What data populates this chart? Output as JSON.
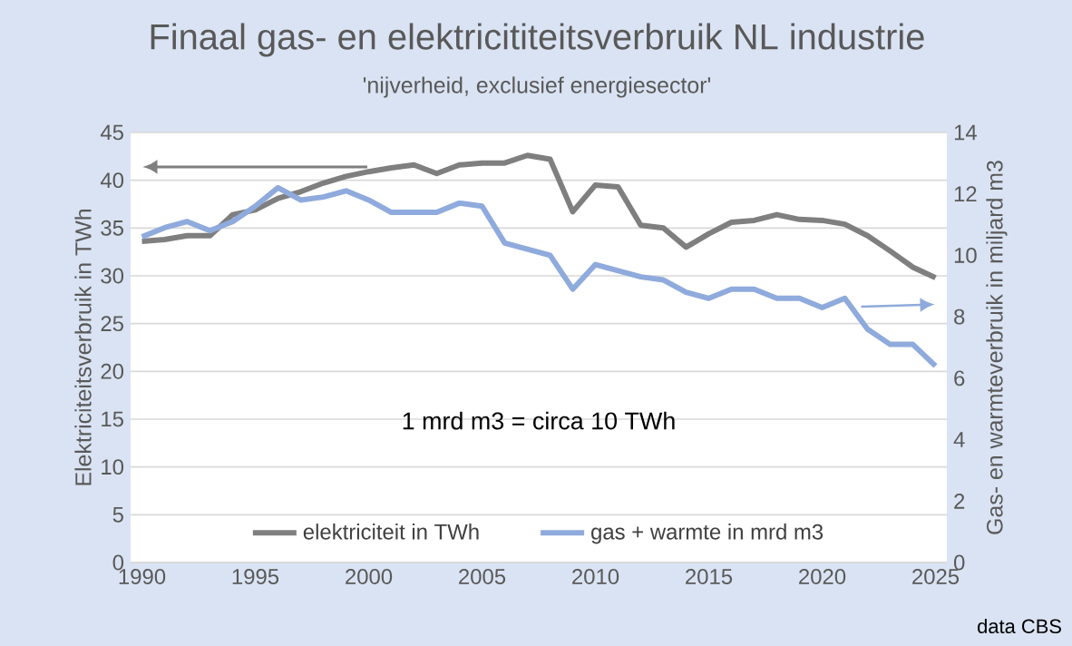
{
  "chart_data": {
    "type": "line",
    "title": "Finaal gas- en elektricititeitsverbruik NL industrie",
    "subtitle": "'nijverheid, exclusief energiesector'",
    "xlabel": null,
    "ylabel": "Elektriciteitsverbruik in TWh",
    "y2label": "Gas- en warmteverbruik in miljard m3",
    "x": [
      1990,
      1991,
      1992,
      1993,
      1994,
      1995,
      1996,
      1997,
      1998,
      1999,
      2000,
      2001,
      2002,
      2003,
      2004,
      2005,
      2006,
      2007,
      2008,
      2009,
      2010,
      2011,
      2012,
      2013,
      2014,
      2015,
      2016,
      2017,
      2018,
      2019,
      2020,
      2021,
      2022,
      2023,
      2024,
      2025
    ],
    "series": [
      {
        "name": "elektriciteit in TWh",
        "color": "#7f7f7f",
        "values": [
          33.6,
          33.8,
          34.2,
          34.2,
          36.4,
          36.9,
          38.1,
          38.8,
          39.7,
          40.4,
          40.9,
          41.3,
          41.6,
          40.7,
          41.6,
          41.8,
          41.8,
          42.6,
          42.2,
          36.7,
          39.5,
          39.3,
          35.3,
          35.0,
          33.0,
          34.4,
          35.6,
          35.8,
          36.4,
          35.9,
          35.8,
          35.4,
          34.2,
          32.6,
          30.9,
          29.8
        ]
      },
      {
        "name": "gas + warmte in mrd m3",
        "color": "#8faadc",
        "axis": "y2",
        "values": [
          10.6,
          10.9,
          11.1,
          10.8,
          11.1,
          11.6,
          12.2,
          11.8,
          11.9,
          12.1,
          11.8,
          11.4,
          11.4,
          11.4,
          11.7,
          11.6,
          10.4,
          10.2,
          10.0,
          8.9,
          9.7,
          9.5,
          9.3,
          9.2,
          8.8,
          8.6,
          8.9,
          8.9,
          8.6,
          8.6,
          8.3,
          8.6,
          7.6,
          7.1,
          7.1,
          6.4
        ]
      }
    ],
    "xlim": [
      1989.5,
      2025.5
    ],
    "xticks": [
      1990,
      1995,
      2000,
      2005,
      2010,
      2015,
      2020,
      2025
    ],
    "ylim": [
      0,
      45
    ],
    "yticks": [
      0,
      5,
      10,
      15,
      20,
      25,
      30,
      35,
      40,
      45
    ],
    "y2lim": [
      0,
      14
    ],
    "y2ticks": [
      0,
      2,
      4,
      6,
      8,
      10,
      12,
      14
    ],
    "grid": "y",
    "legend": "bottom",
    "annotations": [
      "1 mrd m3 = circa 10 TWh",
      "data CBS"
    ]
  }
}
